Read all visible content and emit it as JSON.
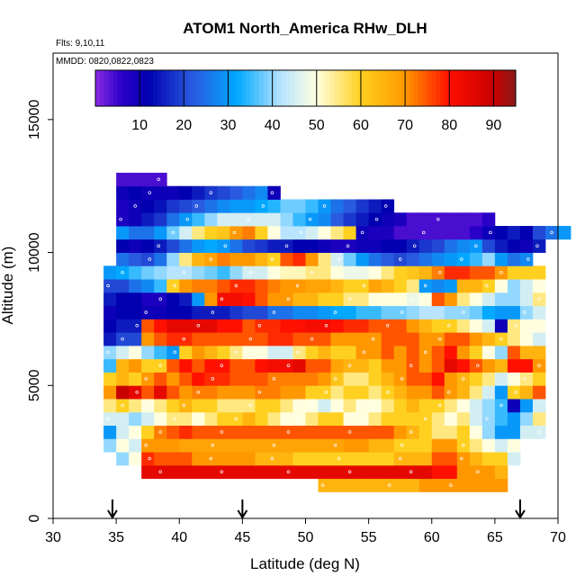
{
  "chart_data": {
    "type": "heatmap",
    "title": "ATOM1 North_America RHw_DLH",
    "annotations": [
      "Flts: 9,10,11",
      "MMDD: 0820,0822,0823"
    ],
    "xlabel": "Latitude (deg N)",
    "ylabel": "Altitude (m)",
    "xlim": [
      30,
      70
    ],
    "ylim": [
      0,
      17500
    ],
    "xticks": [
      "30",
      "35",
      "40",
      "45",
      "50",
      "55",
      "60",
      "65",
      "70"
    ],
    "yticks": [
      "0",
      "5000",
      "10000",
      "15000"
    ],
    "colorbar": {
      "min": 0,
      "max": 95,
      "ticks": [
        "10",
        "20",
        "30",
        "40",
        "50",
        "60",
        "70",
        "80",
        "90"
      ],
      "stops": [
        {
          "v": 0,
          "c": "#8a2be2"
        },
        {
          "v": 6,
          "c": "#2a00c8"
        },
        {
          "v": 12,
          "c": "#0000b0"
        },
        {
          "v": 22,
          "c": "#2a5ae0"
        },
        {
          "v": 32,
          "c": "#00a8ff"
        },
        {
          "v": 42,
          "c": "#b8e4ff"
        },
        {
          "v": 50,
          "c": "#ffffe0"
        },
        {
          "v": 60,
          "c": "#ffd020"
        },
        {
          "v": 70,
          "c": "#ff9800"
        },
        {
          "v": 80,
          "c": "#ff1000"
        },
        {
          "v": 90,
          "c": "#c80000"
        },
        {
          "v": 95,
          "c": "#8b1a1a"
        }
      ]
    },
    "arrows_latitude": [
      34.7,
      45,
      67
    ],
    "bin_width_deg": 1,
    "bin_height_m": 500,
    "rows": [
      {
        "alt": 1250,
        "lat_start": 51,
        "values": [
          65,
          65,
          65,
          65,
          65,
          65,
          65,
          65,
          70,
          70,
          70,
          70,
          70,
          70,
          70
        ]
      },
      {
        "alt": 1750,
        "lat_start": 37,
        "values": [
          85,
          85,
          85,
          85,
          85,
          85,
          85,
          85,
          85,
          85,
          85,
          85,
          85,
          85,
          85,
          85,
          85,
          85,
          85,
          85,
          85,
          85,
          85,
          80,
          80,
          70,
          70,
          70,
          65
        ]
      },
      {
        "alt": 2250,
        "lat_start": 35,
        "values": [
          40,
          50,
          78,
          75,
          75,
          75,
          70,
          70,
          70,
          70,
          70,
          65,
          65,
          65,
          60,
          60,
          60,
          60,
          60,
          60,
          60,
          60,
          65,
          65,
          65,
          75,
          75,
          70,
          65,
          60,
          60,
          45
        ]
      },
      {
        "alt": 2750,
        "lat_start": 34,
        "values": [
          40,
          50,
          45,
          70,
          70,
          70,
          68,
          68,
          68,
          68,
          68,
          68,
          68,
          68,
          68,
          68,
          68,
          68,
          68,
          70,
          70,
          65,
          65,
          60,
          60,
          60,
          70,
          70,
          60,
          55,
          50,
          45,
          50
        ]
      },
      {
        "alt": 3250,
        "lat_start": 34,
        "values": [
          30,
          45,
          50,
          60,
          72,
          75,
          78,
          75,
          75,
          75,
          75,
          75,
          75,
          75,
          75,
          75,
          75,
          75,
          75,
          75,
          75,
          75,
          75,
          70,
          65,
          60,
          55,
          55,
          60,
          50,
          40,
          30,
          30,
          45,
          45
        ]
      },
      {
        "alt": 3750,
        "lat_start": 34,
        "values": [
          45,
          45,
          40,
          45,
          50,
          55,
          55,
          50,
          55,
          60,
          60,
          65,
          60,
          55,
          50,
          50,
          55,
          60,
          60,
          50,
          50,
          55,
          60,
          60,
          60,
          60,
          55,
          50,
          55,
          45,
          40,
          35,
          30,
          40,
          55
        ]
      },
      {
        "alt": 4250,
        "lat_start": 34,
        "values": [
          55,
          60,
          55,
          50,
          55,
          60,
          65,
          60,
          60,
          55,
          55,
          55,
          60,
          60,
          55,
          50,
          50,
          45,
          50,
          55,
          50,
          50,
          55,
          60,
          65,
          60,
          60,
          55,
          50,
          45,
          40,
          35,
          10,
          30,
          45
        ]
      },
      {
        "alt": 4750,
        "lat_start": 34,
        "values": [
          70,
          90,
          85,
          75,
          85,
          75,
          70,
          72,
          72,
          70,
          70,
          70,
          72,
          72,
          70,
          70,
          60,
          60,
          55,
          60,
          60,
          55,
          60,
          65,
          70,
          70,
          75,
          70,
          65,
          55,
          45,
          30,
          60,
          65,
          75
        ]
      },
      {
        "alt": 5250,
        "lat_start": 34,
        "values": [
          60,
          65,
          60,
          70,
          75,
          70,
          75,
          80,
          78,
          78,
          75,
          75,
          75,
          72,
          72,
          72,
          72,
          70,
          62,
          55,
          55,
          60,
          65,
          70,
          75,
          75,
          80,
          70,
          65,
          60,
          55,
          45,
          50,
          55,
          60
        ]
      },
      {
        "alt": 5750,
        "lat_start": 34,
        "values": [
          35,
          65,
          70,
          60,
          60,
          75,
          80,
          75,
          80,
          80,
          75,
          75,
          80,
          82,
          82,
          85,
          75,
          75,
          68,
          65,
          65,
          60,
          70,
          70,
          75,
          70,
          75,
          85,
          80,
          75,
          70,
          65,
          80,
          80,
          70
        ]
      },
      {
        "alt": 6250,
        "lat_start": 34,
        "values": [
          40,
          45,
          50,
          40,
          35,
          30,
          60,
          70,
          65,
          60,
          55,
          50,
          50,
          45,
          45,
          55,
          60,
          65,
          60,
          60,
          70,
          70,
          75,
          70,
          75,
          70,
          75,
          80,
          70,
          60,
          50,
          40,
          75,
          65,
          65
        ]
      },
      {
        "alt": 6750,
        "lat_start": 34,
        "values": [
          15,
          20,
          20,
          70,
          75,
          78,
          78,
          75,
          75,
          75,
          75,
          75,
          75,
          78,
          78,
          75,
          75,
          75,
          70,
          70,
          70,
          70,
          75,
          75,
          75,
          70,
          70,
          75,
          75,
          70,
          65,
          60,
          55,
          50,
          45
        ]
      },
      {
        "alt": 7250,
        "lat_start": 34,
        "values": [
          12,
          15,
          15,
          75,
          80,
          85,
          85,
          85,
          85,
          80,
          80,
          75,
          78,
          78,
          80,
          80,
          82,
          82,
          80,
          78,
          78,
          75,
          75,
          75,
          70,
          65,
          60,
          60,
          55,
          50,
          45,
          10,
          55,
          50,
          50
        ]
      },
      {
        "alt": 7750,
        "lat_start": 34,
        "values": [
          10,
          12,
          12,
          10,
          10,
          12,
          12,
          15,
          15,
          15,
          18,
          20,
          20,
          25,
          25,
          28,
          28,
          30,
          32,
          32,
          35,
          35,
          38,
          38,
          40,
          42,
          42,
          40,
          40,
          38,
          32,
          30,
          30,
          40,
          45
        ]
      },
      {
        "alt": 8250,
        "lat_start": 34,
        "values": [
          15,
          12,
          12,
          8,
          8,
          12,
          15,
          30,
          70,
          82,
          82,
          80,
          75,
          70,
          70,
          65,
          65,
          60,
          60,
          55,
          55,
          50,
          50,
          50,
          48,
          50,
          75,
          70,
          55,
          50,
          45,
          40,
          40,
          45,
          55
        ]
      },
      {
        "alt": 8750,
        "lat_start": 34,
        "values": [
          20,
          20,
          25,
          28,
          35,
          60,
          70,
          72,
          72,
          75,
          78,
          78,
          75,
          72,
          70,
          70,
          68,
          68,
          65,
          60,
          60,
          68,
          65,
          60,
          55,
          30,
          28,
          30,
          65,
          65,
          60,
          50,
          40,
          45,
          50
        ]
      },
      {
        "alt": 9250,
        "lat_start": 34,
        "values": [
          30,
          32,
          35,
          38,
          40,
          42,
          42,
          40,
          38,
          35,
          40,
          45,
          45,
          50,
          52,
          52,
          55,
          55,
          50,
          48,
          48,
          50,
          55,
          60,
          62,
          65,
          72,
          78,
          78,
          75,
          75,
          70,
          60,
          60,
          60
        ]
      },
      {
        "alt": 9750,
        "lat_start": 35,
        "values": [
          25,
          22,
          20,
          25,
          40,
          55,
          65,
          68,
          72,
          70,
          70,
          65,
          60,
          75,
          78,
          70,
          55,
          45,
          38,
          30,
          25,
          22,
          20,
          22,
          25,
          28,
          30,
          32,
          35,
          40,
          30,
          25,
          28
        ]
      },
      {
        "alt": 10250,
        "lat_start": 35,
        "values": [
          12,
          10,
          12,
          15,
          20,
          25,
          30,
          32,
          30,
          25,
          20,
          18,
          15,
          15,
          12,
          12,
          10,
          8,
          8,
          10,
          10,
          12,
          12,
          15,
          18,
          20,
          25,
          28,
          30,
          20,
          15,
          12,
          10,
          15
        ]
      },
      {
        "alt": 10750,
        "lat_start": 35,
        "values": [
          30,
          25,
          25,
          30,
          38,
          45,
          55,
          60,
          62,
          70,
          72,
          60,
          50,
          42,
          42,
          45,
          50,
          55,
          60,
          10,
          8,
          8,
          4,
          4,
          4,
          4,
          4,
          4,
          6,
          10,
          12,
          15,
          12,
          20,
          25,
          30
        ]
      },
      {
        "alt": 11250,
        "lat_start": 35,
        "values": [
          8,
          10,
          15,
          18,
          25,
          30,
          35,
          40,
          45,
          45,
          45,
          45,
          45,
          40,
          35,
          30,
          28,
          22,
          18,
          15,
          12,
          10,
          8,
          4,
          4,
          4,
          4,
          4,
          4,
          6
        ]
      },
      {
        "alt": 11750,
        "lat_start": 35,
        "values": [
          8,
          10,
          12,
          14,
          18,
          20,
          22,
          25,
          28,
          30,
          30,
          32,
          34,
          38,
          38,
          35,
          30,
          25,
          22,
          18,
          15,
          12
        ]
      },
      {
        "alt": 12250,
        "lat_start": 35,
        "values": [
          10,
          12,
          10,
          10,
          10,
          12,
          15,
          18,
          20,
          22,
          25,
          28,
          10
        ]
      },
      {
        "alt": 12750,
        "lat_start": 35,
        "values": [
          4,
          4,
          4,
          4
        ]
      }
    ]
  }
}
